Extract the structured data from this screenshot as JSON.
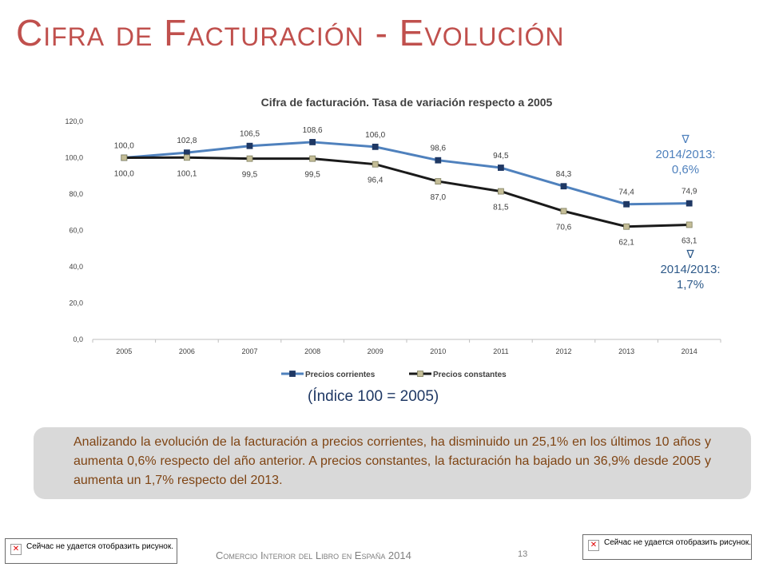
{
  "slide": {
    "title": "Cifra de Facturación - Evolución",
    "index_note": "(Índice 100 = 2005)",
    "summary": "Analizando la evolución de la facturación a precios corrientes, ha disminuido un 25,1% en los últimos 10 años y aumenta 0,6% respecto del año anterior. A precios constantes, la facturación ha bajado un 36,9% desde 2005 y aumenta un 1,7% respecto del 2013.",
    "footer": "Comercio Interior del Libro en España 2014",
    "page_number": "13",
    "missing_image_text": "Сейчас не удается отобразить рисунок.",
    "missing_image_icon": "broken-image-x"
  },
  "annotations": [
    {
      "symbol": "∇",
      "text": "2014/2013:",
      "value": "0,6%"
    },
    {
      "symbol": "∇",
      "text": "2014/2013:",
      "value": "1,7%"
    }
  ],
  "chart_data": {
    "type": "line",
    "title": "Cifra de facturación. Tasa de variación respecto a 2005",
    "categories": [
      "2005",
      "2006",
      "2007",
      "2008",
      "2009",
      "2010",
      "2011",
      "2012",
      "2013",
      "2014"
    ],
    "ylim": [
      0,
      120
    ],
    "y_ticks": [
      "0,0",
      "20,0",
      "40,0",
      "60,0",
      "80,0",
      "100,0",
      "120,0"
    ],
    "grid": false,
    "legend": "bottom",
    "series": [
      {
        "name": "Precios corrientes",
        "color": "#4f81bd",
        "marker_color": "#1f3864",
        "values": [
          100.0,
          102.8,
          106.5,
          108.6,
          106.0,
          98.6,
          94.5,
          84.3,
          74.4,
          74.9
        ],
        "labels": [
          "100,0",
          "102,8",
          "106,5",
          "108,6",
          "106,0",
          "98,6",
          "94,5",
          "84,3",
          "74,4",
          "74,9"
        ]
      },
      {
        "name": "Precios constantes",
        "color": "#1a1a1a",
        "marker_color": "#c4bd97",
        "values": [
          100.0,
          100.1,
          99.5,
          99.5,
          96.4,
          87.0,
          81.5,
          70.6,
          62.1,
          63.1
        ],
        "labels": [
          "100,0",
          "100,1",
          "99,5",
          "99,5",
          "96,4",
          "87,0",
          "81,5",
          "70,6",
          "62,1",
          "63,1"
        ]
      }
    ]
  }
}
